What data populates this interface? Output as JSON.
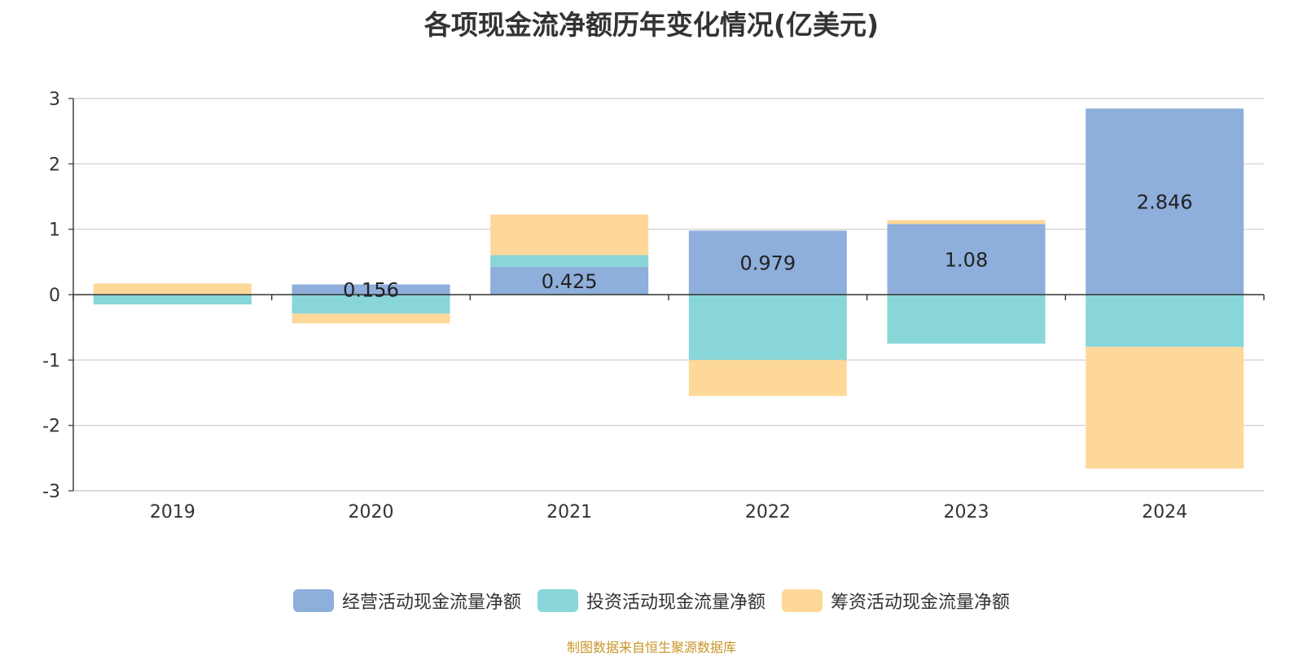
{
  "chart_data": {
    "type": "bar",
    "stacked": true,
    "title": "各项现金流净额历年变化情况(亿美元)",
    "categories": [
      "2019",
      "2020",
      "2021",
      "2022",
      "2023",
      "2024"
    ],
    "series": [
      {
        "name": "经营活动现金流量净额",
        "color": "#8eaedb",
        "values": [
          -0.01,
          0.156,
          0.425,
          0.979,
          1.08,
          2.846
        ],
        "labels": [
          "",
          "0.156",
          "0.425",
          "0.979",
          "1.08",
          "2.846"
        ]
      },
      {
        "name": "投资活动现金流量净额",
        "color": "#88d6d8",
        "values": [
          -0.14,
          -0.29,
          0.18,
          -1.0,
          -0.75,
          -0.8
        ],
        "labels": [
          "",
          "",
          "",
          "",
          "",
          ""
        ]
      },
      {
        "name": "筹资活动现金流量净额",
        "color": "#fed898",
        "values": [
          0.17,
          -0.15,
          0.62,
          -0.55,
          0.06,
          -1.86
        ],
        "labels": [
          "",
          "",
          "",
          "",
          "",
          ""
        ]
      }
    ],
    "ylim": [
      -3,
      3
    ],
    "yticks": [
      3,
      2,
      1,
      0,
      -1,
      -2,
      -3
    ],
    "grid": true,
    "legend_position": "bottom-center",
    "xlabel": "",
    "ylabel": ""
  },
  "source_note": "制图数据来自恒生聚源数据库"
}
